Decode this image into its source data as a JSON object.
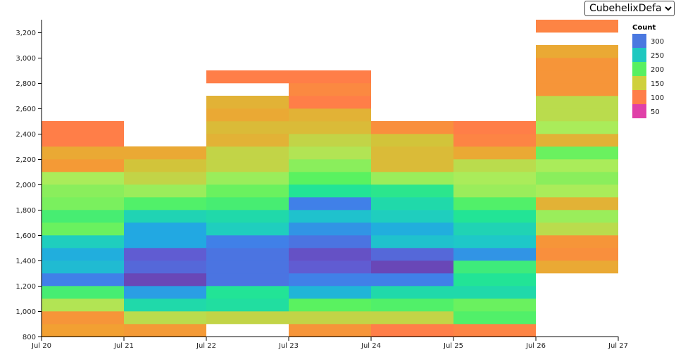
{
  "controls": {
    "scheme_select": {
      "selected": "CubehelixDefault",
      "options": [
        "CubehelixDefault"
      ]
    }
  },
  "legend": {
    "title": "Count",
    "entries": [
      {
        "label": "300",
        "color": "#4a78e0"
      },
      {
        "label": "250",
        "color": "#1ec8c0"
      },
      {
        "label": "200",
        "color": "#58f060"
      },
      {
        "label": "150",
        "color": "#cfd03c"
      },
      {
        "label": "100",
        "color": "#ff7e48"
      },
      {
        "label": "50",
        "color": "#e040a8"
      }
    ]
  },
  "chart_data": {
    "type": "heatmap",
    "title": "",
    "xlabel": "",
    "ylabel": "",
    "x_ticks": [
      "Jul 20",
      "Jul 21",
      "Jul 22",
      "Jul 23",
      "Jul 24",
      "Jul 25",
      "Jul 26",
      "Jul 27"
    ],
    "y_ticks": [
      "800",
      "1,000",
      "1,200",
      "1,400",
      "1,600",
      "1,800",
      "2,000",
      "2,200",
      "2,400",
      "2,600",
      "2,800",
      "3,000",
      "3,200"
    ],
    "ylim": [
      800,
      3300
    ],
    "bin_height": 100,
    "color_scale": "CubehelixDefault",
    "value_range": [
      30,
      330
    ],
    "days": [
      {
        "start": "Jul 20",
        "end": "Jul 21",
        "bins": [
          [
            800,
            900,
            135
          ],
          [
            900,
            1000,
            125
          ],
          [
            1000,
            1100,
            175
          ],
          [
            1100,
            1200,
            215
          ],
          [
            1200,
            1300,
            305
          ],
          [
            1300,
            1400,
            270
          ],
          [
            1400,
            1500,
            280
          ],
          [
            1500,
            1600,
            255
          ],
          [
            1600,
            1700,
            200
          ],
          [
            1700,
            1800,
            215
          ],
          [
            1800,
            1900,
            195
          ],
          [
            1900,
            2000,
            190
          ],
          [
            2000,
            2100,
            180
          ],
          [
            2100,
            2200,
            130
          ],
          [
            2200,
            2300,
            140
          ],
          [
            2300,
            2400,
            105
          ],
          [
            2400,
            2500,
            105
          ]
        ]
      },
      {
        "start": "Jul 21",
        "end": "Jul 22",
        "bins": [
          [
            800,
            900,
            130
          ],
          [
            900,
            1000,
            170
          ],
          [
            1000,
            1100,
            245
          ],
          [
            1100,
            1200,
            290
          ],
          [
            1200,
            1300,
            330
          ],
          [
            1300,
            1400,
            315
          ],
          [
            1400,
            1500,
            320
          ],
          [
            1500,
            1600,
            285
          ],
          [
            1600,
            1700,
            285
          ],
          [
            1700,
            1800,
            250
          ],
          [
            1800,
            1900,
            210
          ],
          [
            1900,
            2000,
            185
          ],
          [
            2000,
            2100,
            165
          ],
          [
            2100,
            2200,
            155
          ],
          [
            2200,
            2300,
            140
          ]
        ]
      },
      {
        "start": "Jul 22",
        "end": "Jul 23",
        "bins": [
          [
            900,
            1000,
            165
          ],
          [
            1000,
            1100,
            240
          ],
          [
            1100,
            1200,
            235
          ],
          [
            1200,
            1300,
            310
          ],
          [
            1300,
            1400,
            310
          ],
          [
            1400,
            1500,
            310
          ],
          [
            1500,
            1600,
            305
          ],
          [
            1600,
            1700,
            255
          ],
          [
            1700,
            1800,
            245
          ],
          [
            1800,
            1900,
            215
          ],
          [
            1900,
            2000,
            200
          ],
          [
            2000,
            2100,
            185
          ],
          [
            2100,
            2200,
            165
          ],
          [
            2200,
            2300,
            165
          ],
          [
            2300,
            2400,
            145
          ],
          [
            2400,
            2500,
            150
          ],
          [
            2500,
            2600,
            140
          ],
          [
            2600,
            2700,
            145
          ],
          [
            2800,
            2900,
            105
          ]
        ]
      },
      {
        "start": "Jul 23",
        "end": "Jul 24",
        "bins": [
          [
            800,
            900,
            125
          ],
          [
            900,
            1000,
            165
          ],
          [
            1000,
            1100,
            205
          ],
          [
            1100,
            1200,
            275
          ],
          [
            1200,
            1300,
            305
          ],
          [
            1300,
            1400,
            320
          ],
          [
            1400,
            1500,
            325
          ],
          [
            1500,
            1600,
            310
          ],
          [
            1600,
            1700,
            295
          ],
          [
            1700,
            1800,
            265
          ],
          [
            1800,
            1900,
            305
          ],
          [
            1900,
            2000,
            235
          ],
          [
            2000,
            2100,
            205
          ],
          [
            2100,
            2200,
            190
          ],
          [
            2200,
            2300,
            175
          ],
          [
            2300,
            2400,
            165
          ],
          [
            2400,
            2500,
            150
          ],
          [
            2500,
            2600,
            145
          ],
          [
            2600,
            2700,
            105
          ],
          [
            2700,
            2800,
            115
          ],
          [
            2800,
            2900,
            105
          ]
        ]
      },
      {
        "start": "Jul 24",
        "end": "Jul 25",
        "bins": [
          [
            800,
            900,
            105
          ],
          [
            900,
            1000,
            165
          ],
          [
            1000,
            1100,
            210
          ],
          [
            1100,
            1200,
            245
          ],
          [
            1200,
            1300,
            305
          ],
          [
            1300,
            1400,
            330
          ],
          [
            1400,
            1500,
            315
          ],
          [
            1500,
            1600,
            265
          ],
          [
            1600,
            1700,
            280
          ],
          [
            1700,
            1800,
            255
          ],
          [
            1800,
            1900,
            245
          ],
          [
            1900,
            2000,
            230
          ],
          [
            2000,
            2100,
            185
          ],
          [
            2100,
            2200,
            150
          ],
          [
            2200,
            2300,
            150
          ],
          [
            2300,
            2400,
            155
          ],
          [
            2400,
            2500,
            120
          ]
        ]
      },
      {
        "start": "Jul 25",
        "end": "Jul 26",
        "bins": [
          [
            800,
            900,
            110
          ],
          [
            900,
            1000,
            210
          ],
          [
            1000,
            1100,
            200
          ],
          [
            1100,
            1200,
            245
          ],
          [
            1200,
            1300,
            235
          ],
          [
            1300,
            1400,
            220
          ],
          [
            1400,
            1500,
            295
          ],
          [
            1500,
            1600,
            260
          ],
          [
            1600,
            1700,
            250
          ],
          [
            1700,
            1800,
            235
          ],
          [
            1800,
            1900,
            210
          ],
          [
            1900,
            2000,
            185
          ],
          [
            2000,
            2100,
            180
          ],
          [
            2100,
            2200,
            170
          ],
          [
            2200,
            2300,
            140
          ],
          [
            2300,
            2400,
            110
          ],
          [
            2400,
            2500,
            105
          ]
        ]
      },
      {
        "start": "Jul 26",
        "end": "Jul 27",
        "bins": [
          [
            1300,
            1400,
            140
          ],
          [
            1400,
            1500,
            120
          ],
          [
            1500,
            1600,
            125
          ],
          [
            1600,
            1700,
            170
          ],
          [
            1700,
            1800,
            185
          ],
          [
            1800,
            1900,
            145
          ],
          [
            1900,
            2000,
            180
          ],
          [
            2000,
            2100,
            190
          ],
          [
            2100,
            2200,
            180
          ],
          [
            2200,
            2300,
            200
          ],
          [
            2300,
            2400,
            145
          ],
          [
            2400,
            2500,
            180
          ],
          [
            2500,
            2600,
            170
          ],
          [
            2600,
            2700,
            170
          ],
          [
            2700,
            2800,
            125
          ],
          [
            2800,
            2900,
            125
          ],
          [
            2900,
            3000,
            125
          ],
          [
            3000,
            3100,
            140
          ],
          [
            3200,
            3300,
            110
          ]
        ]
      }
    ]
  }
}
